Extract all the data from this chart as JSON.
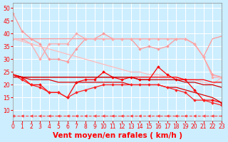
{
  "background_color": "#cceeff",
  "grid_color": "#ffffff",
  "x_values": [
    0,
    1,
    2,
    3,
    4,
    5,
    6,
    7,
    8,
    9,
    10,
    11,
    12,
    13,
    14,
    15,
    16,
    17,
    18,
    19,
    20,
    21,
    22,
    23
  ],
  "series": [
    {
      "name": "top_pink_spiky",
      "color": "#ff9999",
      "linewidth": 0.9,
      "marker": "D",
      "markersize": 1.8,
      "y": [
        48,
        41,
        38,
        36,
        30,
        30,
        29,
        34,
        38,
        38,
        40,
        38,
        38,
        38,
        34,
        35,
        34,
        35,
        38,
        38,
        36,
        31,
        24,
        23
      ]
    },
    {
      "name": "top_pink_flat_high",
      "color": "#ff9999",
      "linewidth": 0.9,
      "marker": null,
      "y": [
        38,
        38,
        38,
        38,
        38,
        38,
        38,
        38,
        38,
        38,
        38,
        38,
        38,
        38,
        38,
        38,
        38,
        38,
        38,
        38,
        36,
        31,
        38,
        39
      ]
    },
    {
      "name": "top_pink_mid",
      "color": "#ffaaaa",
      "linewidth": 0.9,
      "marker": "D",
      "markersize": 1.8,
      "y": [
        38,
        38,
        36,
        30,
        36,
        36,
        36,
        40,
        38,
        38,
        38,
        38,
        38,
        38,
        38,
        38,
        38,
        38,
        38,
        38,
        36,
        31,
        23,
        23
      ]
    },
    {
      "name": "diagonal_pink",
      "color": "#ffbbbb",
      "linewidth": 0.9,
      "marker": null,
      "y": [
        38,
        37,
        36,
        35,
        34,
        33,
        32,
        31,
        30,
        29,
        28,
        27,
        26,
        25,
        25,
        24,
        24,
        23,
        23,
        22,
        22,
        21,
        20,
        23
      ]
    },
    {
      "name": "red_spiky_main",
      "color": "#ff0000",
      "linewidth": 0.9,
      "marker": "D",
      "markersize": 1.8,
      "y": [
        24,
        23,
        20,
        20,
        17,
        17,
        15,
        21,
        22,
        22,
        25,
        23,
        22,
        23,
        22,
        22,
        27,
        24,
        22,
        22,
        18,
        14,
        14,
        13
      ]
    },
    {
      "name": "red_flat_upper",
      "color": "#ff0000",
      "linewidth": 0.9,
      "marker": null,
      "y": [
        24,
        23,
        23,
        23,
        23,
        23,
        23,
        23,
        23,
        23,
        23,
        23,
        23,
        23,
        23,
        23,
        23,
        23,
        23,
        22,
        22,
        22,
        21,
        21
      ]
    },
    {
      "name": "red_flat_mid",
      "color": "#cc0000",
      "linewidth": 0.9,
      "marker": null,
      "y": [
        23,
        23,
        23,
        23,
        23,
        23,
        23,
        23,
        23,
        23,
        23,
        23,
        23,
        23,
        22,
        22,
        22,
        22,
        22,
        21,
        21,
        20,
        20,
        19
      ]
    },
    {
      "name": "red_diagonal_lower",
      "color": "#dd0000",
      "linewidth": 0.9,
      "marker": null,
      "y": [
        24,
        23,
        22,
        22,
        22,
        21,
        21,
        21,
        21,
        21,
        21,
        21,
        21,
        20,
        20,
        20,
        20,
        19,
        19,
        18,
        17,
        16,
        15,
        13
      ]
    },
    {
      "name": "red_lower_spiky",
      "color": "#ff2222",
      "linewidth": 0.9,
      "marker": "D",
      "markersize": 1.8,
      "y": [
        24,
        22,
        20,
        19,
        17,
        17,
        15,
        17,
        18,
        19,
        20,
        20,
        20,
        20,
        20,
        20,
        20,
        19,
        18,
        17,
        14,
        14,
        13,
        12
      ]
    },
    {
      "name": "bottom_dashed_arrows",
      "color": "#ff4444",
      "linewidth": 0.8,
      "linestyle": "--",
      "marker": "<",
      "markersize": 2.5,
      "y": [
        8,
        8,
        8,
        8,
        8,
        8,
        8,
        8,
        8,
        8,
        8,
        8,
        8,
        8,
        8,
        8,
        8,
        8,
        8,
        8,
        8,
        8,
        8,
        8
      ]
    }
  ],
  "xlim": [
    0,
    23
  ],
  "ylim": [
    6,
    52
  ],
  "yticks": [
    10,
    15,
    20,
    25,
    30,
    35,
    40,
    45,
    50
  ],
  "xtick_labels": [
    "0",
    "1",
    "2",
    "3",
    "4",
    "5",
    "6",
    "7",
    "8",
    "9",
    "10",
    "11",
    "12",
    "13",
    "14",
    "15",
    "16",
    "17",
    "18",
    "19",
    "20",
    "21",
    "22",
    "23"
  ],
  "xlabel": "Vent moyen/en rafales ( km/h )",
  "xlabel_color": "#ff0000",
  "tick_color": "#ff0000",
  "tick_fontsize": 5.5,
  "xlabel_fontsize": 7.5
}
